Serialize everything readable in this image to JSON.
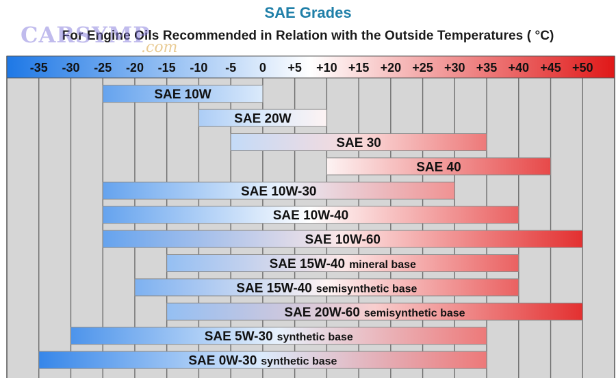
{
  "chart_data": {
    "type": "bar",
    "orientation": "horizontal-range",
    "title": "SAE Grades",
    "subtitle": "For Engine Oils Recommended in Relation with the Outside Temperatures ( °C)",
    "x_ticks": [
      "-35",
      "-30",
      "-25",
      "-20",
      "-15",
      "-10",
      "-5",
      "0",
      "+5",
      "+10",
      "+15",
      "+20",
      "+25",
      "+30",
      "+35",
      "+40",
      "+45",
      "+50"
    ],
    "x_range": [
      -40,
      55
    ],
    "grid": true,
    "scale_colors": {
      "cold": "#1e78e6",
      "mid": "#ffffff",
      "hot": "#e01818"
    },
    "bars": [
      {
        "label": "SAE 10W",
        "suffix": "",
        "min": -25,
        "max": 0
      },
      {
        "label": "SAE 20W",
        "suffix": "",
        "min": -10,
        "max": 10
      },
      {
        "label": "SAE 30",
        "suffix": "",
        "min": -5,
        "max": 35
      },
      {
        "label": "SAE 40",
        "suffix": "",
        "min": 10,
        "max": 45
      },
      {
        "label": "SAE 10W-30",
        "suffix": "",
        "min": -25,
        "max": 30
      },
      {
        "label": "SAE 10W-40",
        "suffix": "",
        "min": -25,
        "max": 40
      },
      {
        "label": "SAE 10W-60",
        "suffix": "",
        "min": -25,
        "max": 50
      },
      {
        "label": "SAE 15W-40",
        "suffix": "mineral base",
        "min": -15,
        "max": 40
      },
      {
        "label": "SAE 15W-40",
        "suffix": "semisynthetic base",
        "min": -20,
        "max": 40
      },
      {
        "label": "SAE 20W-60",
        "suffix": "semisynthetic base",
        "min": -15,
        "max": 50
      },
      {
        "label": "SAE 5W-30",
        "suffix": "synthetic base",
        "min": -30,
        "max": 35
      },
      {
        "label": "SAE 0W-30",
        "suffix": "synthetic base",
        "min": -35,
        "max": 35
      }
    ]
  },
  "watermark": {
    "brand": "CARSYMP",
    "domain": ".com"
  }
}
